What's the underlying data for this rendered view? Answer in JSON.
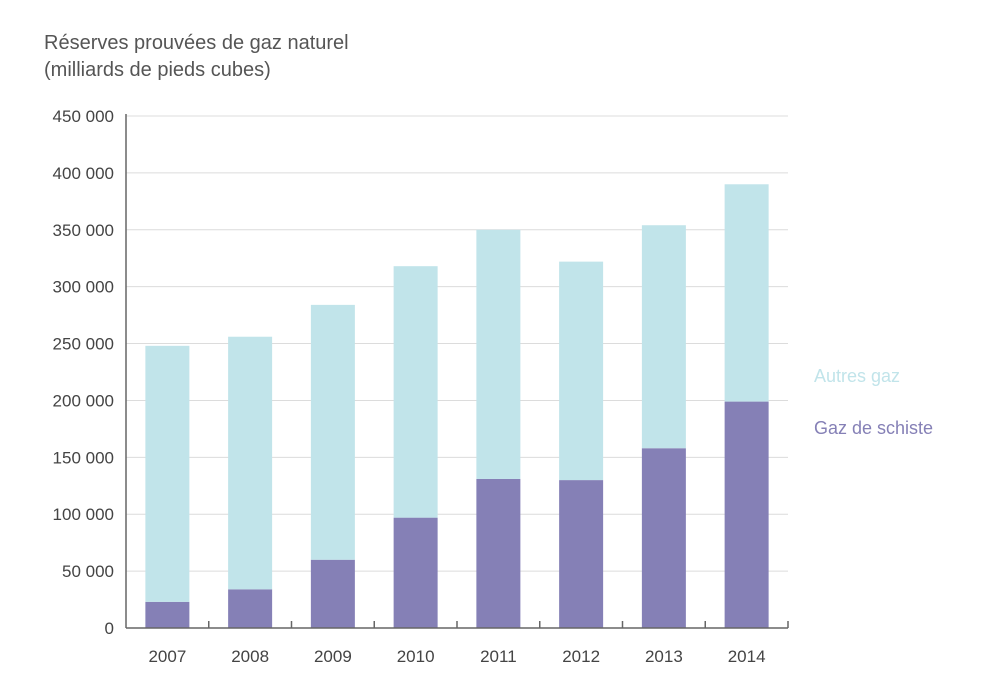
{
  "chart_data": {
    "type": "bar",
    "stacked": true,
    "title": "Réserves prouvées de gaz naturel",
    "subtitle": "(milliards de pieds cubes)",
    "xlabel": "",
    "ylabel": "",
    "categories": [
      "2007",
      "2008",
      "2009",
      "2010",
      "2011",
      "2012",
      "2013",
      "2014"
    ],
    "series": [
      {
        "name": "Gaz de schiste",
        "color": "#8580b6",
        "values": [
          23000,
          34000,
          60000,
          97000,
          131000,
          130000,
          158000,
          199000
        ]
      },
      {
        "name": "Autres gaz",
        "color": "#c1e4ea",
        "values": [
          225000,
          222000,
          224000,
          221000,
          219000,
          192000,
          196000,
          191000
        ]
      }
    ],
    "totals": [
      248000,
      256000,
      284000,
      318000,
      350000,
      322000,
      354000,
      390000
    ],
    "ylim": [
      0,
      450000
    ],
    "yticks": [
      0,
      50000,
      100000,
      150000,
      200000,
      250000,
      300000,
      350000,
      400000,
      450000
    ],
    "ytick_labels": [
      "0",
      "50 000",
      "100 000",
      "150 000",
      "200 000",
      "250 000",
      "300 000",
      "350 000",
      "400 000",
      "450 000"
    ],
    "grid": true,
    "legend": {
      "placement": "right",
      "entries": [
        "Autres gaz",
        "Gaz de schiste"
      ]
    }
  }
}
